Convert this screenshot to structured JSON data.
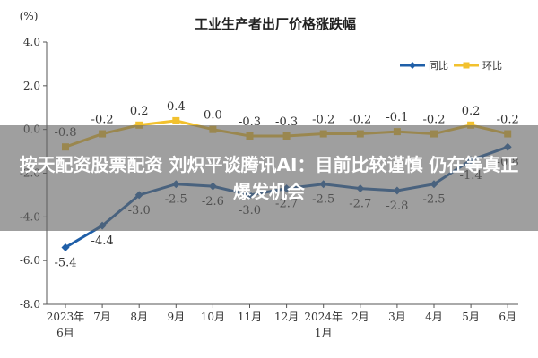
{
  "headline": "按天配资股票配资 刘炽平谈腾讯AI：目前比较谨慎 仍在等真正爆发机会",
  "colors": {
    "yoy": "#1f5fa8",
    "mom": "#f2c12e"
  },
  "chart_data": {
    "type": "line",
    "title": "工业生产者出厂价格涨跌幅",
    "unit_label": "(%)",
    "categories": [
      "2023年\n6月",
      "7月",
      "8月",
      "9月",
      "10月",
      "11月",
      "12月",
      "2024年\n1月",
      "2月",
      "3月",
      "4月",
      "5月",
      "6月"
    ],
    "ylim": [
      -8.0,
      4.0
    ],
    "yticks": [
      "4.0",
      "2.0",
      "0.0",
      "-2.0",
      "-4.0",
      "-6.0",
      "-8.0"
    ],
    "ytick_values": [
      4,
      2,
      0,
      -2,
      -4,
      -6,
      -8
    ],
    "legend_position": "top-right",
    "grid": false,
    "series": [
      {
        "name": "同比",
        "values": [
          -5.4,
          -4.4,
          -3.0,
          -2.5,
          -2.6,
          -3.0,
          -2.7,
          -2.5,
          -2.7,
          -2.8,
          -2.5,
          -1.4,
          -0.8
        ],
        "labels": [
          "-5.4",
          "-4.4",
          "-3.0",
          "-2.5",
          "-2.6",
          "-3.0",
          "-2.7",
          "-2.5",
          "-2.7",
          "-2.8",
          "-2.5",
          "-1.4",
          "-0.8"
        ]
      },
      {
        "name": "环比",
        "values": [
          -0.8,
          -0.2,
          0.2,
          0.4,
          0.0,
          -0.3,
          -0.3,
          -0.2,
          -0.2,
          -0.1,
          -0.2,
          0.2,
          -0.2
        ],
        "labels": [
          "-0.8",
          "-0.2",
          "0.2",
          "0.4",
          "0.0",
          "-0.3",
          "-0.3",
          "-0.2",
          "-0.2",
          "-0.1",
          "-0.2",
          "0.2",
          "-0.2"
        ]
      }
    ]
  }
}
